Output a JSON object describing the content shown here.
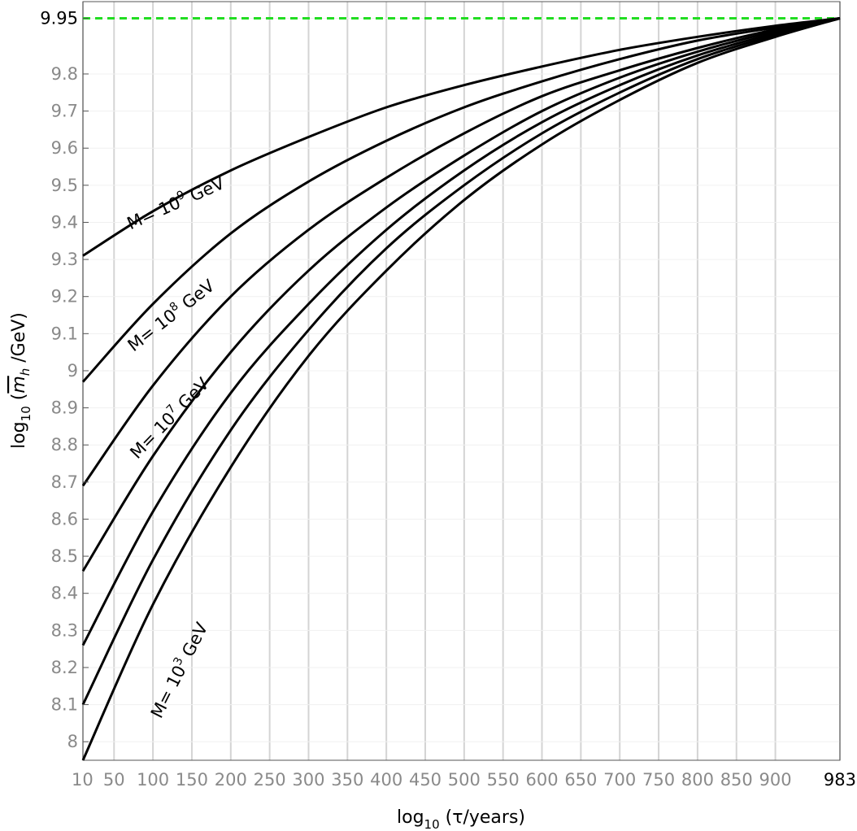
{
  "chart_data": {
    "type": "line",
    "xlabel": {
      "prefix": "log",
      "sub": "10",
      "suffix": " (τ/years)"
    },
    "ylabel": {
      "prefix": "log",
      "sub": "10",
      "open": " (",
      "sym": "m",
      "symsub": "h",
      "suffix": " /GeV)"
    },
    "xlim": [
      10,
      983
    ],
    "ylim": [
      7.95,
      9.995
    ],
    "x_ticks": [
      10,
      50,
      100,
      150,
      200,
      250,
      300,
      350,
      400,
      450,
      500,
      550,
      600,
      650,
      700,
      750,
      800,
      850,
      900,
      983
    ],
    "x_tick_labels": [
      "10",
      "50",
      "100",
      "150",
      "200",
      "250",
      "300",
      "350",
      "400",
      "450",
      "500",
      "550",
      "600",
      "650",
      "700",
      "750",
      "800",
      "850",
      "900",
      "983"
    ],
    "x_tick_highlight": [
      983
    ],
    "y_ticks": [
      8.0,
      8.1,
      8.2,
      8.3,
      8.4,
      8.5,
      8.6,
      8.7,
      8.8,
      8.9,
      9.0,
      9.1,
      9.2,
      9.3,
      9.4,
      9.5,
      9.6,
      9.7,
      9.8,
      9.95
    ],
    "y_tick_labels": [
      "8",
      "8.1",
      "8.2",
      "8.3",
      "8.4",
      "8.5",
      "8.6",
      "8.7",
      "8.8",
      "8.9",
      "9",
      "9.1",
      "9.2",
      "9.3",
      "9.4",
      "9.5",
      "9.6",
      "9.7",
      "9.8",
      "9.95"
    ],
    "y_tick_highlight": [
      9.95
    ],
    "reference_line": {
      "y": 9.95,
      "style": "dashed",
      "color": "#22dd22"
    },
    "grid": {
      "vertical": true,
      "horizontal": "faint"
    },
    "line_color": "#000000",
    "series": [
      {
        "x": [
          10,
          100,
          200,
          300,
          400,
          500,
          600,
          700,
          800,
          900,
          983
        ],
        "y": [
          9.31,
          9.43,
          9.54,
          9.63,
          9.71,
          9.77,
          9.82,
          9.865,
          9.9,
          9.93,
          9.95
        ]
      },
      {
        "x": [
          10,
          100,
          200,
          300,
          400,
          500,
          600,
          700,
          800,
          900,
          983
        ],
        "y": [
          8.97,
          9.18,
          9.37,
          9.51,
          9.62,
          9.71,
          9.78,
          9.84,
          9.89,
          9.925,
          9.95
        ]
      },
      {
        "x": [
          10,
          100,
          200,
          300,
          400,
          500,
          600,
          700,
          800,
          900,
          983
        ],
        "y": [
          8.69,
          8.96,
          9.2,
          9.38,
          9.52,
          9.64,
          9.74,
          9.81,
          9.87,
          9.92,
          9.95
        ]
      },
      {
        "x": [
          10,
          100,
          200,
          300,
          400,
          500,
          600,
          700,
          800,
          900,
          983
        ],
        "y": [
          8.46,
          8.77,
          9.05,
          9.27,
          9.44,
          9.58,
          9.7,
          9.79,
          9.86,
          9.915,
          9.95
        ]
      },
      {
        "x": [
          10,
          100,
          200,
          300,
          400,
          500,
          600,
          700,
          800,
          900,
          983
        ],
        "y": [
          8.26,
          8.62,
          8.94,
          9.18,
          9.38,
          9.54,
          9.67,
          9.77,
          9.85,
          9.91,
          9.95
        ]
      },
      {
        "x": [
          10,
          100,
          200,
          300,
          400,
          500,
          600,
          700,
          800,
          900,
          983
        ],
        "y": [
          8.1,
          8.49,
          8.84,
          9.11,
          9.33,
          9.5,
          9.64,
          9.75,
          9.84,
          9.905,
          9.95
        ]
      },
      {
        "x": [
          10,
          100,
          200,
          300,
          400,
          500,
          600,
          700,
          800,
          900,
          983
        ],
        "y": [
          7.95,
          8.37,
          8.74,
          9.04,
          9.27,
          9.46,
          9.61,
          9.73,
          9.83,
          9.9,
          9.95
        ]
      }
    ],
    "curve_labels": [
      {
        "prefix": "M= 10",
        "exp": "9",
        "suffix": " GeV",
        "x": 71,
        "y": 9.38,
        "angle": -24
      },
      {
        "prefix": "M= 10",
        "exp": "8",
        "suffix": " GeV",
        "x": 75,
        "y": 9.05,
        "angle": -38
      },
      {
        "prefix": "M= 10",
        "exp": "7",
        "suffix": " GeV",
        "x": 80,
        "y": 8.76,
        "angle": -46
      },
      {
        "prefix": "M= 10",
        "exp": "3",
        "suffix": " GeV",
        "x": 110,
        "y": 8.06,
        "angle": -63
      }
    ]
  }
}
